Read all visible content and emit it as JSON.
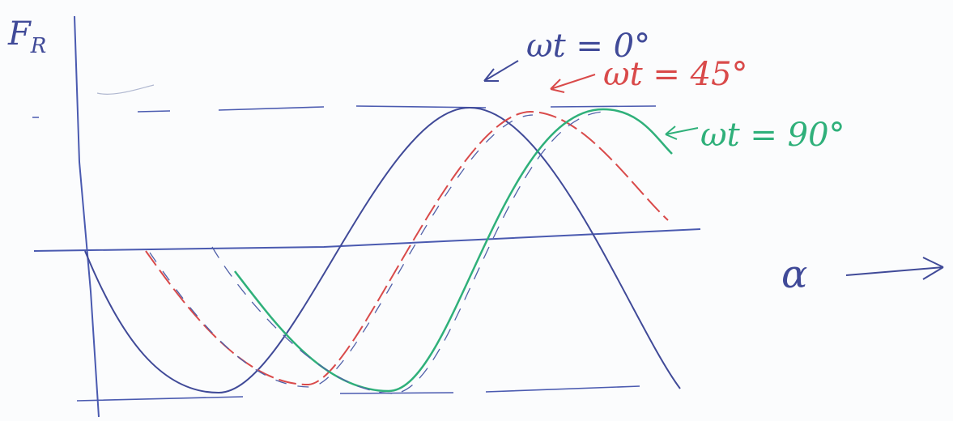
{
  "axes": {
    "y_label": "F",
    "y_label_sub": "R",
    "x_label": "α"
  },
  "curves": [
    {
      "label": "ωt = 0°"
    },
    {
      "label": "ωt = 45°"
    },
    {
      "label": "ωt = 90°"
    }
  ]
}
